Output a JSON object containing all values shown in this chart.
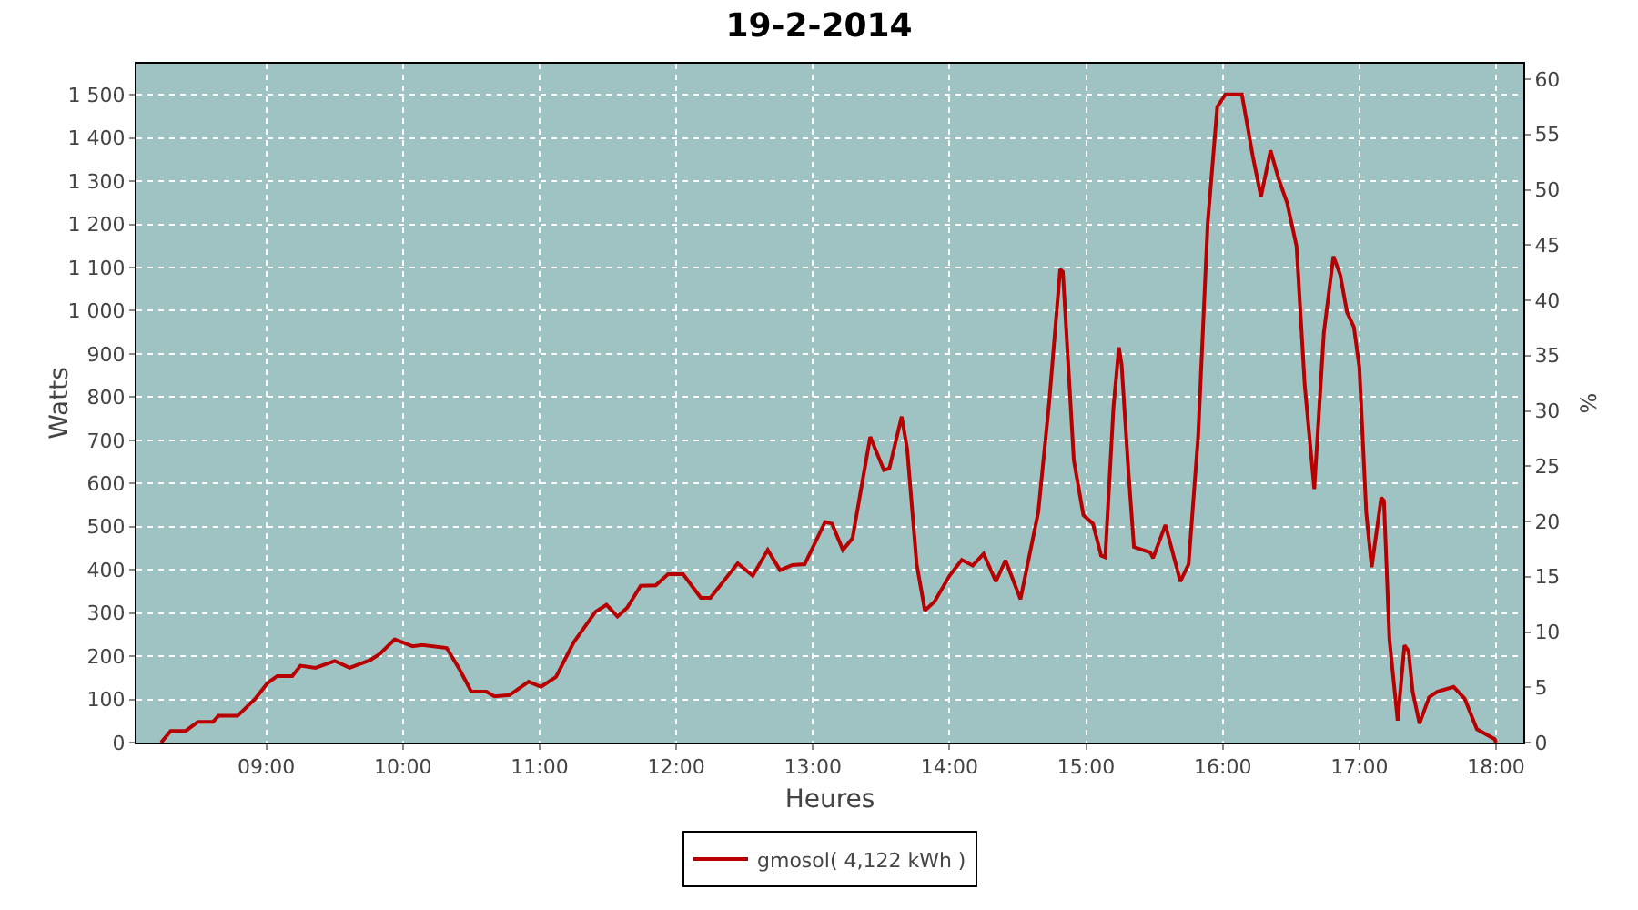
{
  "chart_data": {
    "type": "line",
    "title": "19-2-2014",
    "xlabel": "Heures",
    "ylabel": "Watts",
    "y2label": "%",
    "x": [
      8.23,
      8.3,
      8.41,
      8.5,
      8.61,
      8.65,
      8.79,
      8.92,
      9.01,
      9.08,
      9.19,
      9.25,
      9.36,
      9.5,
      9.61,
      9.76,
      9.83,
      9.94,
      10.07,
      10.14,
      10.32,
      10.41,
      10.5,
      10.61,
      10.67,
      10.78,
      10.92,
      11.01,
      11.12,
      11.25,
      11.41,
      11.49,
      11.57,
      11.64,
      11.74,
      11.85,
      11.94,
      12.05,
      12.18,
      12.25,
      12.45,
      12.56,
      12.67,
      12.76,
      12.85,
      12.94,
      13.09,
      13.14,
      13.22,
      13.29,
      13.42,
      13.52,
      13.56,
      13.65,
      13.69,
      13.76,
      13.82,
      13.89,
      14.0,
      14.09,
      14.17,
      14.25,
      14.34,
      14.41,
      14.52,
      14.65,
      14.73,
      14.81,
      14.83,
      14.91,
      14.98,
      15.05,
      15.11,
      15.14,
      15.2,
      15.24,
      15.26,
      15.31,
      15.35,
      15.47,
      15.49,
      15.58,
      15.69,
      15.75,
      15.82,
      15.89,
      15.96,
      16.02,
      16.14,
      16.22,
      16.28,
      16.35,
      16.41,
      16.47,
      16.54,
      16.6,
      16.67,
      16.74,
      16.81,
      16.86,
      16.91,
      16.96,
      17.0,
      17.05,
      17.09,
      17.16,
      17.18,
      17.22,
      17.28,
      17.33,
      17.36,
      17.39,
      17.44,
      17.51,
      17.57,
      17.69,
      17.77,
      17.86,
      17.99,
      18.0
    ],
    "series": [
      {
        "name": "gmosol( 4,122 kWh )",
        "color": "#b80000",
        "values": [
          0,
          27,
          27,
          48,
          48,
          62,
          62,
          102,
          138,
          154,
          154,
          178,
          173,
          189,
          173,
          191,
          205,
          239,
          223,
          226,
          219,
          172,
          118,
          118,
          107,
          110,
          141,
          129,
          152,
          232,
          303,
          319,
          292,
          312,
          363,
          364,
          390,
          390,
          335,
          335,
          415,
          386,
          446,
          399,
          411,
          413,
          511,
          507,
          446,
          473,
          708,
          631,
          635,
          755,
          681,
          413,
          306,
          326,
          386,
          423,
          410,
          437,
          373,
          422,
          332,
          534,
          788,
          1096,
          1090,
          654,
          527,
          507,
          433,
          429,
          775,
          915,
          875,
          627,
          453,
          440,
          427,
          504,
          373,
          413,
          708,
          1203,
          1472,
          1501,
          1501,
          1358,
          1264,
          1371,
          1304,
          1251,
          1150,
          828,
          587,
          949,
          1126,
          1083,
          996,
          962,
          869,
          534,
          406,
          567,
          560,
          239,
          51,
          225,
          212,
          118,
          44,
          105,
          118,
          129,
          102,
          31,
          8,
          0
        ]
      }
    ],
    "xlim": [
      8.05,
      18.2
    ],
    "xticks": [
      {
        "value": 9,
        "label": "09:00"
      },
      {
        "value": 10,
        "label": "10:00"
      },
      {
        "value": 11,
        "label": "11:00"
      },
      {
        "value": 12,
        "label": "12:00"
      },
      {
        "value": 13,
        "label": "13:00"
      },
      {
        "value": 14,
        "label": "14:00"
      },
      {
        "value": 15,
        "label": "15:00"
      },
      {
        "value": 16,
        "label": "16:00"
      },
      {
        "value": 17,
        "label": "17:00"
      },
      {
        "value": 18,
        "label": "18:00"
      }
    ],
    "ylim": [
      0,
      1572
    ],
    "yticks": [
      0,
      100,
      200,
      300,
      400,
      500,
      600,
      700,
      800,
      900,
      {
        "value": 1000,
        "label": "1 000"
      },
      {
        "value": 1100,
        "label": "1 100"
      },
      {
        "value": 1200,
        "label": "1 200"
      },
      {
        "value": 1300,
        "label": "1 300"
      },
      {
        "value": 1400,
        "label": "1 400"
      },
      {
        "value": 1500,
        "label": "1 500"
      }
    ],
    "y2lim": [
      0,
      61.4
    ],
    "y2ticks": [
      0,
      5,
      10,
      15,
      20,
      25,
      30,
      35,
      40,
      45,
      50,
      55,
      60
    ],
    "grid": true,
    "legend": "bottom",
    "marker": "none",
    "line_style": "solid"
  }
}
